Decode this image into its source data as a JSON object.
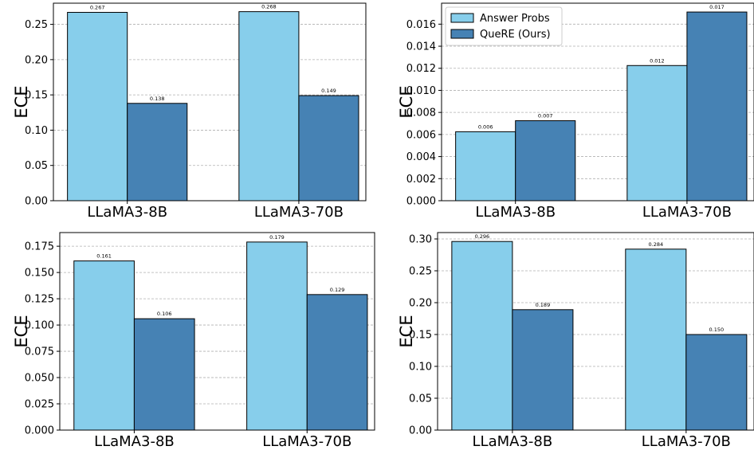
{
  "colors": {
    "answer_probs": "#87ceeb",
    "quere": "#4682b4"
  },
  "chart_data": [
    {
      "type": "bar",
      "categories": [
        "LLaMA3-8B",
        "LLaMA3-70B"
      ],
      "series": [
        {
          "name": "Answer Probs",
          "values": [
            0.267,
            0.268
          ],
          "labels": [
            "0.267",
            "0.268"
          ]
        },
        {
          "name": "QueRE (Ours)",
          "values": [
            0.138,
            0.149
          ],
          "labels": [
            "0.138",
            "0.149"
          ]
        }
      ],
      "ylabel": "ECE",
      "ylim": [
        0,
        0.28
      ],
      "yticks": [
        "0.00",
        "0.05",
        "0.10",
        "0.15",
        "0.20",
        "0.25"
      ],
      "grid": "horizontal",
      "legend": null
    },
    {
      "type": "bar",
      "categories": [
        "LLaMA3-8B",
        "LLaMA3-70B"
      ],
      "series": [
        {
          "name": "Answer Probs",
          "values": [
            0.00625,
            0.01225
          ],
          "labels": [
            "0.006",
            "0.012"
          ]
        },
        {
          "name": "QueRE (Ours)",
          "values": [
            0.00725,
            0.0171
          ],
          "labels": [
            "0.007",
            "0.017"
          ]
        }
      ],
      "ylabel": "ECE",
      "ylim": [
        0,
        0.0179
      ],
      "yticks": [
        "0.000",
        "0.002",
        "0.004",
        "0.006",
        "0.008",
        "0.010",
        "0.012",
        "0.014",
        "0.016"
      ],
      "grid": "horizontal",
      "legend": "top-left"
    },
    {
      "type": "bar",
      "categories": [
        "LLaMA3-8B",
        "LLaMA3-70B"
      ],
      "series": [
        {
          "name": "Answer Probs",
          "values": [
            0.161,
            0.179
          ],
          "labels": [
            "0.161",
            "0.179"
          ]
        },
        {
          "name": "QueRE (Ours)",
          "values": [
            0.106,
            0.129
          ],
          "labels": [
            "0.106",
            "0.129"
          ]
        }
      ],
      "ylabel": "ECE",
      "ylim": [
        0,
        0.188
      ],
      "yticks": [
        "0.000",
        "0.025",
        "0.050",
        "0.075",
        "0.100",
        "0.125",
        "0.150",
        "0.175"
      ],
      "grid": "horizontal",
      "legend": null
    },
    {
      "type": "bar",
      "categories": [
        "LLaMA3-8B",
        "LLaMA3-70B"
      ],
      "series": [
        {
          "name": "Answer Probs",
          "values": [
            0.296,
            0.284
          ],
          "labels": [
            "0.296",
            "0.284"
          ]
        },
        {
          "name": "QueRE (Ours)",
          "values": [
            0.189,
            0.15
          ],
          "labels": [
            "0.189",
            "0.150"
          ]
        }
      ],
      "ylabel": "ECE",
      "ylim": [
        0,
        0.31
      ],
      "yticks": [
        "0.00",
        "0.05",
        "0.10",
        "0.15",
        "0.20",
        "0.25",
        "0.30"
      ],
      "grid": "horizontal",
      "legend": null
    }
  ]
}
